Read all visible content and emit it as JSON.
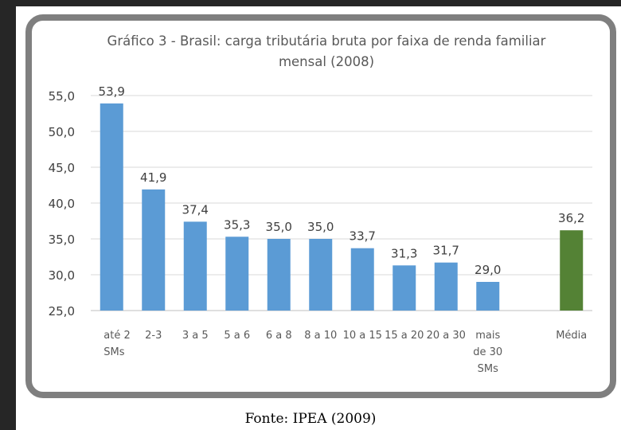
{
  "chart_data": {
    "type": "bar",
    "title_lines": [
      "Gráfico 3 - Brasil: carga tributária bruta por faixa de renda familiar",
      "mensal (2008)"
    ],
    "categories": [
      [
        "até 2",
        "SMs"
      ],
      [
        "2-3"
      ],
      [
        "3 a 5"
      ],
      [
        "5 a 6"
      ],
      [
        "6 a 8"
      ],
      [
        "8 a 10"
      ],
      [
        "10 a 15"
      ],
      [
        "15 a 20"
      ],
      [
        "20 a 30"
      ],
      [
        "mais",
        "de 30",
        "SMs"
      ],
      [
        "Média"
      ]
    ],
    "values": [
      53.9,
      41.9,
      37.4,
      35.3,
      35.0,
      35.0,
      33.7,
      31.3,
      31.7,
      29.0,
      36.2
    ],
    "value_labels": [
      "53,9",
      "41,9",
      "37,4",
      "35,3",
      "35,0",
      "35,0",
      "33,7",
      "31,3",
      "31,7",
      "29,0",
      "36,2"
    ],
    "bar_colors": [
      "#5b9bd5",
      "#5b9bd5",
      "#5b9bd5",
      "#5b9bd5",
      "#5b9bd5",
      "#5b9bd5",
      "#5b9bd5",
      "#5b9bd5",
      "#5b9bd5",
      "#5b9bd5",
      "#548235"
    ],
    "yticks": [
      25.0,
      30.0,
      35.0,
      40.0,
      45.0,
      50.0,
      55.0
    ],
    "ytick_labels": [
      "25,0",
      "30,0",
      "35,0",
      "40,0",
      "45,0",
      "50,0",
      "55,0"
    ],
    "ylim": [
      25,
      55
    ],
    "grid": true,
    "legend": "none"
  },
  "source": "Fonte: IPEA (2009)"
}
